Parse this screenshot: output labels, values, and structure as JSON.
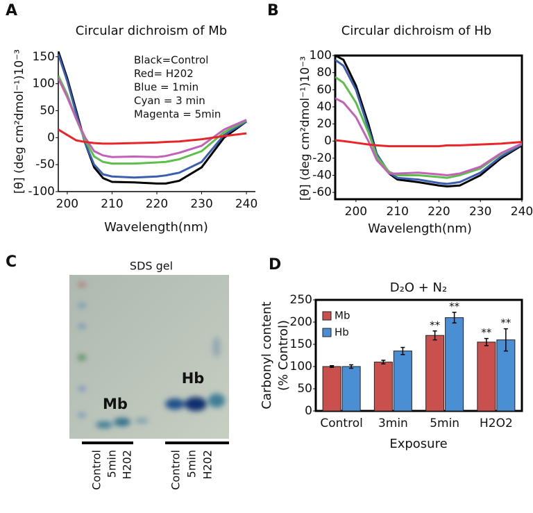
{
  "chart_data": [
    {
      "type": "line",
      "panel_label": "A",
      "title": "Circular dichroism of Mb",
      "xlabel": "Wavelength(nm)",
      "ylabel": "[θ] (deg cm²dmol⁻¹)10⁻³",
      "annotations": [
        "Black=Control",
        "Red= H202",
        "Blue = 1min",
        "Cyan = 3 min",
        "Magenta = 5min"
      ],
      "x": [
        198,
        200,
        202,
        204,
        206,
        208,
        210,
        215,
        220,
        222,
        225,
        230,
        235,
        240
      ],
      "xlim": [
        198,
        242
      ],
      "xticks": [
        200,
        210,
        220,
        230,
        240
      ],
      "ylim": [
        -100,
        160
      ],
      "yticks": [
        150,
        100,
        50,
        0,
        -50,
        -100
      ],
      "frame": false,
      "series": [
        {
          "color": "#000000",
          "values": [
            160,
            110,
            50,
            -10,
            -55,
            -75,
            -82,
            -83,
            -85,
            -85,
            -80,
            -55,
            0,
            30
          ]
        },
        {
          "color": "#3a5fb0",
          "values": [
            155,
            105,
            45,
            -10,
            -50,
            -68,
            -72,
            -74,
            -72,
            -70,
            -65,
            -45,
            5,
            30
          ]
        },
        {
          "color": "#5cbf4a",
          "values": [
            115,
            80,
            35,
            -5,
            -35,
            -45,
            -48,
            -48,
            -46,
            -45,
            -40,
            -25,
            10,
            32
          ]
        },
        {
          "color": "#c361b8",
          "values": [
            110,
            75,
            35,
            0,
            -25,
            -33,
            -36,
            -35,
            -36,
            -34,
            -28,
            -15,
            15,
            33
          ]
        },
        {
          "color": "#e8262a",
          "values": [
            15,
            5,
            -5,
            -8,
            -10,
            -11,
            -11,
            -10,
            -9,
            -8,
            -7,
            -3,
            3,
            8
          ]
        }
      ]
    },
    {
      "type": "line",
      "panel_label": "B",
      "title": "Circular dichroism of Hb",
      "xlabel": "Wavelength(nm)",
      "ylabel": "[θ] (deg cm²dmol⁻¹)10⁻³",
      "x": [
        195,
        197,
        200,
        203,
        205,
        208,
        210,
        215,
        220,
        222,
        225,
        230,
        235,
        240
      ],
      "xlim": [
        195,
        240
      ],
      "xticks": [
        200,
        210,
        220,
        230,
        240
      ],
      "ylim": [
        -68,
        100
      ],
      "yticks": [
        100,
        80,
        60,
        40,
        20,
        0,
        -20,
        -40,
        -60
      ],
      "frame": true,
      "series": [
        {
          "color": "#000000",
          "values": [
            100,
            95,
            65,
            20,
            -15,
            -38,
            -45,
            -48,
            -52,
            -53,
            -52,
            -40,
            -20,
            -5
          ]
        },
        {
          "color": "#3a5fb0",
          "values": [
            95,
            88,
            60,
            15,
            -15,
            -37,
            -43,
            -45,
            -49,
            -50,
            -48,
            -37,
            -18,
            -4
          ]
        },
        {
          "color": "#5cbf4a",
          "values": [
            75,
            68,
            45,
            10,
            -18,
            -36,
            -40,
            -40,
            -42,
            -43,
            -40,
            -32,
            -15,
            -3
          ]
        },
        {
          "color": "#c361b8",
          "values": [
            50,
            45,
            28,
            0,
            -22,
            -38,
            -38,
            -37,
            -39,
            -40,
            -38,
            -30,
            -14,
            -3
          ]
        },
        {
          "color": "#e8262a",
          "values": [
            1,
            0,
            -2,
            -4,
            -5,
            -6,
            -6,
            -6,
            -6,
            -5,
            -5,
            -4,
            -3,
            -1
          ]
        }
      ]
    },
    {
      "type": "bar",
      "panel_label": "D",
      "title": "D₂O + N₂",
      "xlabel": "Exposure",
      "ylabel": [
        "Carbonyl content",
        "(% Control)"
      ],
      "categories": [
        "Control",
        "3min",
        "5min",
        "H2O2"
      ],
      "ylim": [
        0,
        250
      ],
      "yticks": [
        0,
        50,
        100,
        150,
        200,
        250
      ],
      "frame": true,
      "legend": "upper left",
      "series": [
        {
          "name": "Mb",
          "color": "#c9504c",
          "values": [
            100,
            110,
            170,
            155
          ],
          "errors": [
            2,
            4,
            10,
            8
          ],
          "significance": [
            null,
            null,
            "**",
            "**"
          ]
        },
        {
          "name": "Hb",
          "color": "#4a8fd4",
          "values": [
            100,
            135,
            210,
            160
          ],
          "errors": [
            4,
            8,
            12,
            25
          ],
          "significance": [
            null,
            null,
            "**",
            "**"
          ]
        }
      ]
    }
  ],
  "gel": {
    "panel_label": "C",
    "title": "SDS gel",
    "band_labels": [
      "Mb",
      "Hb"
    ],
    "lane_groups": [
      [
        "Control",
        "5min",
        "H202"
      ],
      [
        "Control",
        "5min",
        "H202"
      ]
    ]
  }
}
